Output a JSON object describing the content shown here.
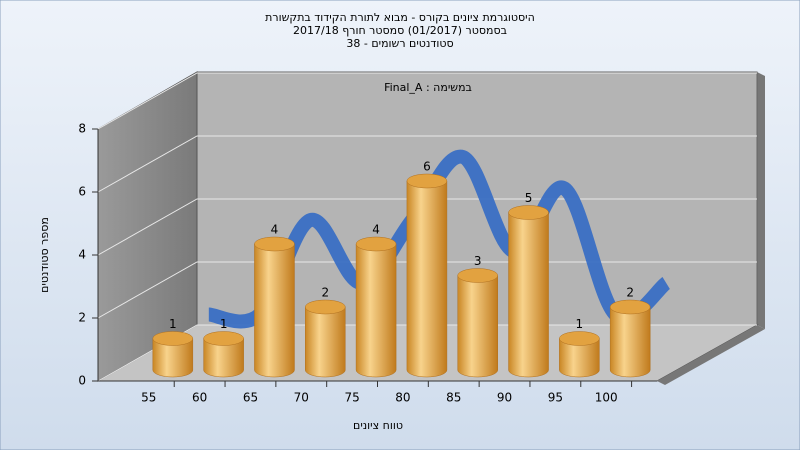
{
  "chart_data": {
    "type": "bar",
    "title": [
      "היסטוגרמת ציונים בקורס - מבוא לתורת הקידוד בתקשורת",
      "בסמסטר  (01/2017)  סמסטר חורף 2017/18",
      "סטודנטים רשומים - 38"
    ],
    "subtitle": "Final_A : במשימה",
    "x_label": "טווח ציונים",
    "y_label": "מספר סטודנטים",
    "categories": [
      "55",
      "60",
      "65",
      "70",
      "75",
      "80",
      "85",
      "90",
      "95",
      "100"
    ],
    "values": [
      1,
      1,
      4,
      2,
      4,
      6,
      3,
      5,
      1,
      2
    ],
    "color": "#e2a240",
    "line_color": "#3a6fc4",
    "ylim": [
      0,
      8
    ],
    "yticks": [
      0,
      2,
      4,
      6,
      8
    ],
    "grid": true
  }
}
